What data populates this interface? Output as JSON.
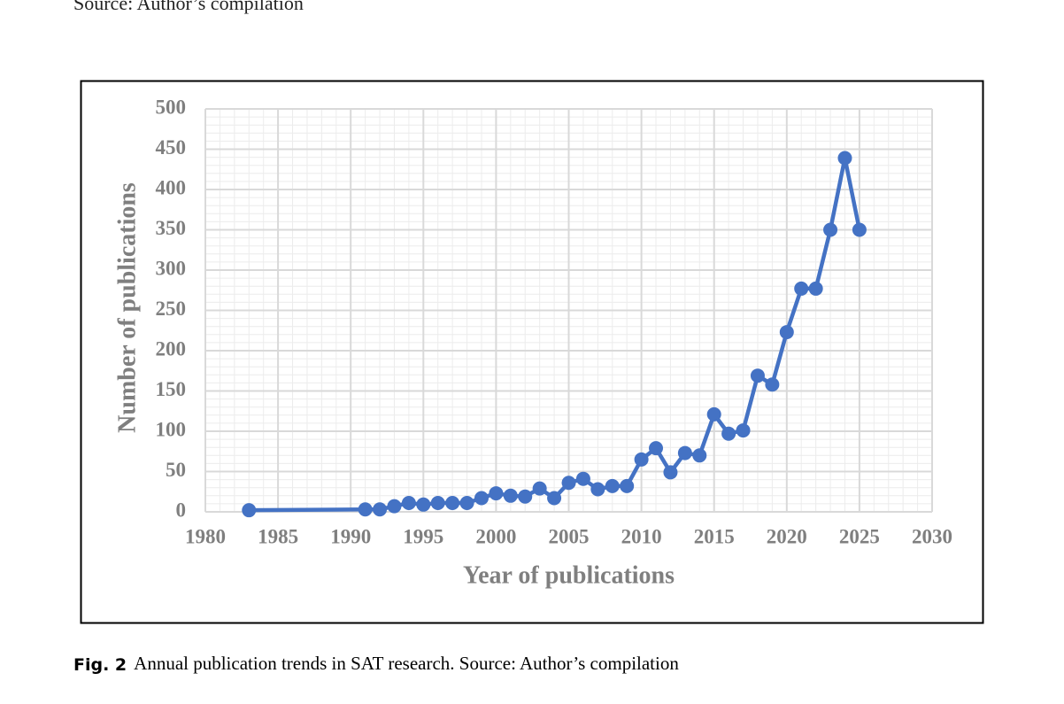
{
  "header_text": "Source: Author’s compilation",
  "chart_data": {
    "type": "line",
    "x_label": "Year of publications",
    "y_label": "Number of publications",
    "x": [
      1983,
      1991,
      1992,
      1993,
      1994,
      1995,
      1996,
      1997,
      1998,
      1999,
      2000,
      2001,
      2002,
      2003,
      2004,
      2005,
      2006,
      2007,
      2008,
      2009,
      2010,
      2011,
      2012,
      2013,
      2014,
      2015,
      2016,
      2017,
      2018,
      2019,
      2020,
      2021,
      2022,
      2023,
      2024,
      2025
    ],
    "values": [
      2,
      3,
      3,
      7,
      11,
      9,
      11,
      11,
      11,
      17,
      23,
      20,
      19,
      29,
      17,
      36,
      41,
      28,
      32,
      32,
      65,
      79,
      49,
      73,
      70,
      121,
      97,
      101,
      169,
      158,
      223,
      277,
      277,
      350,
      439,
      350
    ],
    "color": "#4472c4",
    "xlim": [
      1980,
      2030
    ],
    "xticks": [
      1980,
      1985,
      1990,
      1995,
      2000,
      2005,
      2010,
      2015,
      2020,
      2025,
      2030
    ],
    "ylim": [
      0,
      500
    ],
    "yticks": [
      0,
      50,
      100,
      150,
      200,
      250,
      300,
      350,
      400,
      450,
      500
    ],
    "grid": true
  },
  "caption": {
    "label": "Fig. 2",
    "text": "Annual publication trends in SAT research. Source: Author’s compilation"
  }
}
